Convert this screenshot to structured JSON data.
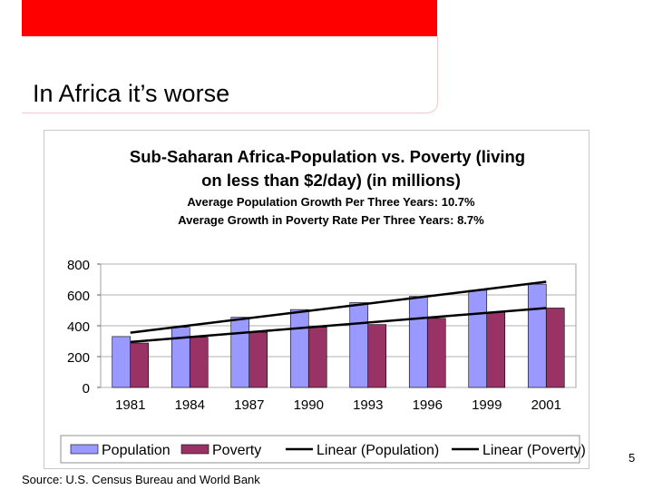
{
  "slide": {
    "title": "In Africa it’s worse",
    "page_number": "5",
    "source": "Source: U.S. Census Bureau and World Bank",
    "accent_color": "#ff0000"
  },
  "chart_data": {
    "type": "bar",
    "title_line1": "Sub-Saharan Africa-Population vs. Poverty (living",
    "title_line2": "on less than $2/day) (in millions)",
    "subtitle_line1": "Average Population Growth Per Three Years: 10.7%",
    "subtitle_line2": "Average Growth in Poverty Rate Per Three Years: 8.7%",
    "categories": [
      "1981",
      "1984",
      "1987",
      "1990",
      "1993",
      "1996",
      "1999",
      "2001"
    ],
    "series": [
      {
        "name": "Population",
        "color": "#9999ff",
        "values": [
          330,
          390,
          455,
          505,
          550,
          590,
          630,
          670
        ]
      },
      {
        "name": "Poverty",
        "color": "#993366",
        "values": [
          288,
          325,
          358,
          390,
          408,
          448,
          488,
          515
        ]
      }
    ],
    "trendlines": [
      {
        "name": "Linear (Population)",
        "series": "Population",
        "start": 355,
        "end": 685
      },
      {
        "name": "Linear (Poverty)",
        "series": "Poverty",
        "start": 295,
        "end": 515
      }
    ],
    "yticks": [
      0,
      200,
      400,
      600,
      800
    ],
    "ylim": [
      0,
      800
    ],
    "xlabel": "",
    "ylabel": "",
    "grid": true,
    "legend_position": "bottom"
  }
}
